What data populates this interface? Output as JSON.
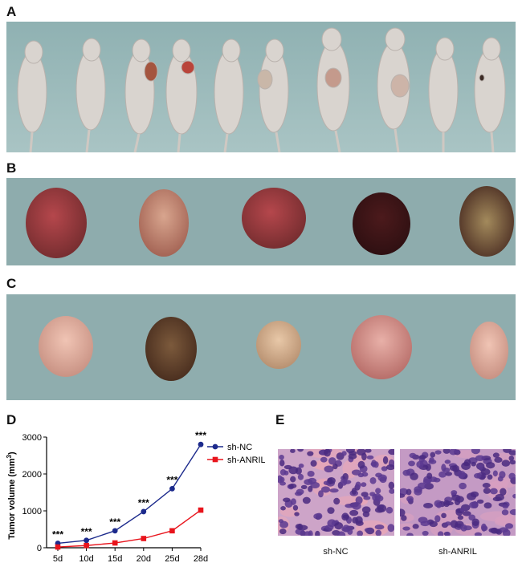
{
  "figure": {
    "panels": [
      {
        "label": "A"
      },
      {
        "label": "B"
      },
      {
        "label": "C"
      },
      {
        "label": "D"
      },
      {
        "label": "E"
      }
    ]
  },
  "histology": {
    "captions": [
      "sh-NC",
      "sh-ANRIL"
    ]
  },
  "chart_data": {
    "type": "line",
    "categories": [
      "5d",
      "10d",
      "15d",
      "20d",
      "25d",
      "28d"
    ],
    "ylabel_main": "Tumor volume (mm",
    "ylabel_sup": "3",
    "ylabel_close": ")",
    "ylim": [
      0,
      3000
    ],
    "yticks": [
      "0",
      "1000",
      "2000",
      "3000"
    ],
    "series": [
      {
        "name": "sh-NC",
        "color": "#1c2a8c",
        "marker": "circle",
        "values": [
          120,
          200,
          460,
          980,
          1600,
          2800
        ]
      },
      {
        "name": "sh-ANRIL",
        "color": "#e8141c",
        "marker": "square",
        "values": [
          20,
          60,
          130,
          250,
          460,
          1020
        ]
      }
    ],
    "annotations": [
      "***",
      "***",
      "***",
      "***",
      "***",
      "***"
    ],
    "legend": "top-right",
    "grid": false
  }
}
